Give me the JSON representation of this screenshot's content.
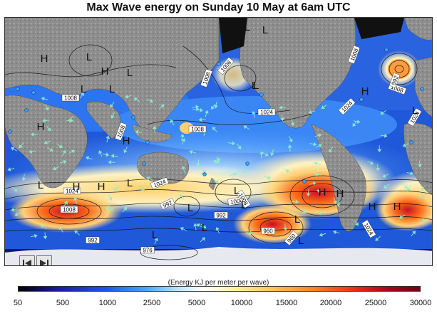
{
  "title": "Max Wave energy on Sunday 10 May at 6am UTC",
  "legend": {
    "caption": "(Energy KJ per meter per wave)",
    "ticks": [
      "50",
      "500",
      "1000",
      "2500",
      "5000",
      "10000",
      "15000",
      "20000",
      "25000",
      "30000"
    ]
  },
  "isobar_labels": [
    {
      "text": "1008",
      "rot": 0
    },
    {
      "text": "1008",
      "rot": -70
    },
    {
      "text": "1008",
      "rot": -50
    },
    {
      "text": "1008",
      "rot": -70
    },
    {
      "text": "1008",
      "rot": 20
    },
    {
      "text": "1024",
      "rot": 0
    },
    {
      "text": "1008",
      "rot": 0
    },
    {
      "text": "1024",
      "rot": -45
    },
    {
      "text": "1024",
      "rot": -60
    },
    {
      "text": "1008",
      "rot": -70
    },
    {
      "text": "992",
      "rot": -70
    },
    {
      "text": "1008",
      "rot": 0
    },
    {
      "text": "1024",
      "rot": 0
    },
    {
      "text": "1024",
      "rot": -20
    },
    {
      "text": "992",
      "rot": -25
    },
    {
      "text": "992",
      "rot": 0
    },
    {
      "text": "1008",
      "rot": -10
    },
    {
      "text": "1008",
      "rot": 60
    },
    {
      "text": "960",
      "rot": 0
    },
    {
      "text": "960",
      "rot": -50
    },
    {
      "text": "1024",
      "rot": 60
    },
    {
      "text": "992",
      "rot": 0
    },
    {
      "text": "976",
      "rot": 0
    }
  ],
  "pressure_markers": [
    "H",
    "H",
    "L",
    "L",
    "L",
    "L",
    "L",
    "H",
    "H",
    "H",
    "L",
    "L",
    "L",
    "L",
    "H",
    "H",
    "L",
    "L",
    "L",
    "L",
    "L",
    "L",
    "L",
    "H",
    "H",
    "L",
    "L",
    "H",
    "H"
  ],
  "colors": {
    "ocean_high": "#e62b1a",
    "ocean_low": "#1e56e6",
    "land": "#8c8c8c"
  },
  "navigation": {
    "previous_icon": "skip-back-icon",
    "next_icon": "step-forward-icon"
  }
}
